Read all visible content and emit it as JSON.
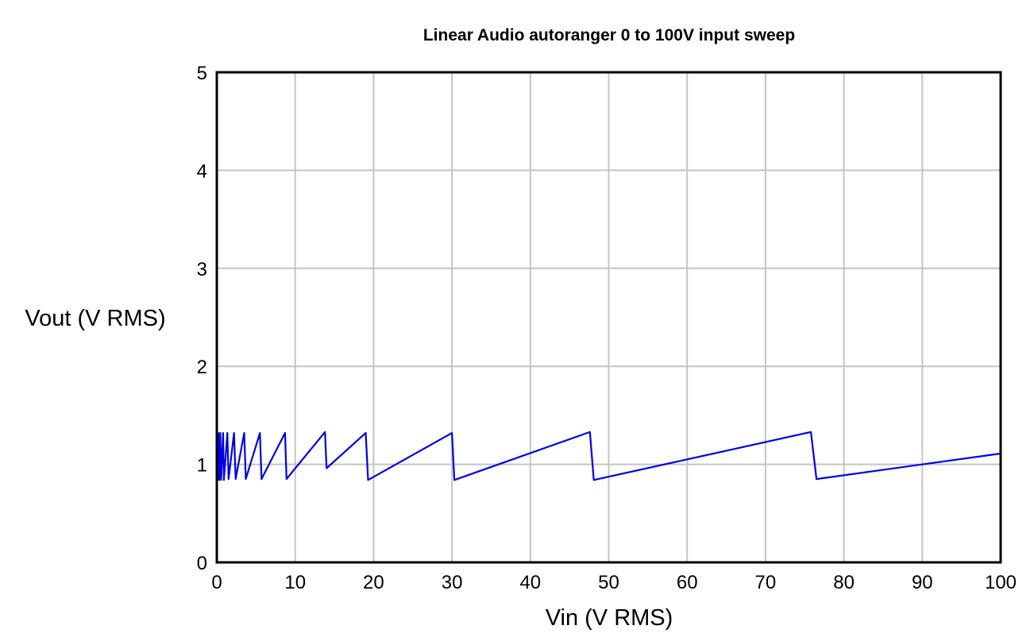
{
  "chart_data": {
    "type": "line",
    "title": "Linear Audio autoranger 0 to 100V input sweep",
    "xlabel": "Vin (V RMS)",
    "ylabel": "Vout (V RMS)",
    "xlim": [
      0,
      100
    ],
    "ylim": [
      0,
      5
    ],
    "xticks": [
      0,
      10,
      20,
      30,
      40,
      50,
      60,
      70,
      80,
      90,
      100
    ],
    "yticks": [
      0,
      1,
      2,
      3,
      4,
      5
    ],
    "grid": true,
    "line_color": "#0000e6",
    "series": [
      {
        "points": [
          [
            0,
            0
          ],
          [
            0.05,
            1.32
          ],
          [
            0.1,
            0.84
          ],
          [
            0.2,
            1.32
          ],
          [
            0.3,
            0.84
          ],
          [
            0.45,
            1.32
          ],
          [
            0.55,
            0.84
          ],
          [
            0.8,
            1.32
          ],
          [
            0.9,
            0.84
          ],
          [
            1.35,
            1.32
          ],
          [
            1.5,
            0.85
          ],
          [
            2.2,
            1.32
          ],
          [
            2.4,
            0.85
          ],
          [
            3.5,
            1.32
          ],
          [
            3.7,
            0.85
          ],
          [
            5.5,
            1.32
          ],
          [
            5.7,
            0.85
          ],
          [
            8.7,
            1.32
          ],
          [
            8.9,
            0.85
          ],
          [
            13.8,
            1.33
          ],
          [
            14.0,
            0.96
          ],
          [
            19.0,
            1.32
          ],
          [
            19.3,
            0.84
          ],
          [
            30.0,
            1.32
          ],
          [
            30.3,
            0.84
          ],
          [
            47.6,
            1.33
          ],
          [
            48.1,
            0.84
          ],
          [
            75.8,
            1.33
          ],
          [
            76.5,
            0.85
          ],
          [
            100,
            1.11
          ]
        ]
      }
    ]
  }
}
